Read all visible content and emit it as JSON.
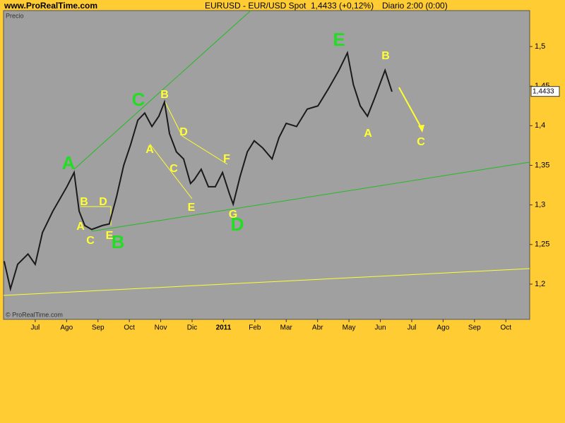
{
  "chart_data": {
    "type": "line",
    "site": "www.ProRealTime.com",
    "title": "EURUSD - EUR/USD Spot",
    "quote": "1,4433 (+0,12%)",
    "period": "Diario  2:00 (0:00)",
    "panel_label": "Precio",
    "watermark": "© ProRealTime.com",
    "last_price_label": {
      "value": 1.4433,
      "label": "1,4433"
    },
    "color": "#1a1a1a",
    "x": [
      -0.99,
      -0.79,
      -0.56,
      -0.23,
      0,
      0.23,
      0.56,
      1.01,
      1.24,
      1.4,
      1.58,
      1.8,
      2.14,
      2.36,
      2.59,
      2.82,
      3.04,
      3.27,
      3.49,
      3.72,
      3.94,
      4.12,
      4.28,
      4.5,
      4.73,
      4.95,
      5.07,
      5.29,
      5.52,
      5.74,
      5.97,
      6.19,
      6.31,
      6.53,
      6.76,
      6.98,
      7.25,
      7.55,
      7.77,
      8.0,
      8.33,
      8.67,
      9.01,
      9.35,
      9.68,
      9.95,
      10.14,
      10.36,
      10.59,
      10.81,
      11.15,
      11.37
    ],
    "values": [
      1.229,
      1.194,
      1.225,
      1.238,
      1.225,
      1.265,
      1.292,
      1.323,
      1.341,
      1.292,
      1.274,
      1.269,
      1.274,
      1.276,
      1.31,
      1.35,
      1.376,
      1.407,
      1.416,
      1.399,
      1.412,
      1.43,
      1.39,
      1.367,
      1.358,
      1.327,
      1.332,
      1.345,
      1.323,
      1.323,
      1.341,
      1.314,
      1.301,
      1.336,
      1.367,
      1.381,
      1.372,
      1.358,
      1.385,
      1.403,
      1.399,
      1.421,
      1.425,
      1.447,
      1.47,
      1.492,
      1.452,
      1.425,
      1.412,
      1.434,
      1.47,
      1.443
    ],
    "xlim": [
      -1.01,
      15.76
    ],
    "xticks": [
      {
        "value": 0,
        "label": "Jul"
      },
      {
        "value": 1,
        "label": "Ago"
      },
      {
        "value": 2,
        "label": "Sep"
      },
      {
        "value": 3,
        "label": "Oct"
      },
      {
        "value": 4,
        "label": "Nov"
      },
      {
        "value": 5,
        "label": "Dic"
      },
      {
        "value": 6,
        "label": "2011"
      },
      {
        "value": 7,
        "label": "Feb"
      },
      {
        "value": 8,
        "label": "Mar"
      },
      {
        "value": 9,
        "label": "Abr"
      },
      {
        "value": 10,
        "label": "May"
      },
      {
        "value": 11,
        "label": "Jun"
      },
      {
        "value": 12,
        "label": "Jul"
      },
      {
        "value": 13,
        "label": "Ago"
      },
      {
        "value": 14,
        "label": "Sep"
      },
      {
        "value": 15,
        "label": "Oct"
      }
    ],
    "ylim": [
      1.1555,
      1.5454
    ],
    "yticks": [
      {
        "value": 1.2,
        "label": "1,2"
      },
      {
        "value": 1.25,
        "label": "1,25"
      },
      {
        "value": 1.3,
        "label": "1,3"
      },
      {
        "value": 1.35,
        "label": "1,35"
      },
      {
        "value": 1.4,
        "label": "1,4"
      },
      {
        "value": 1.45,
        "label": "1,45"
      },
      {
        "value": 1.5,
        "label": "1,5"
      }
    ],
    "annotations": [
      {
        "text": "A",
        "color": "#22dd22"
      },
      {
        "text": "B",
        "color": "#22dd22"
      },
      {
        "text": "C",
        "color": "#22dd22"
      },
      {
        "text": "D",
        "color": "#22dd22"
      },
      {
        "text": "E",
        "color": "#22dd22"
      },
      {
        "text": "B",
        "color": "#ffff33"
      },
      {
        "text": "D",
        "color": "#ffff33"
      },
      {
        "text": "A",
        "color": "#ffff33"
      },
      {
        "text": "C",
        "color": "#ffff33"
      },
      {
        "text": "E",
        "color": "#ffff33"
      },
      {
        "text": "B",
        "color": "#ffff33"
      },
      {
        "text": "A",
        "color": "#ffff33"
      },
      {
        "text": "D",
        "color": "#ffff33"
      },
      {
        "text": "C",
        "color": "#ffff33"
      },
      {
        "text": "F",
        "color": "#ffff33"
      },
      {
        "text": "E",
        "color": "#ffff33"
      },
      {
        "text": "G",
        "color": "#ffff33"
      },
      {
        "text": "B",
        "color": "#ffff33"
      },
      {
        "text": "A",
        "color": "#ffff33"
      },
      {
        "text": "C",
        "color": "#ffff33"
      }
    ]
  }
}
